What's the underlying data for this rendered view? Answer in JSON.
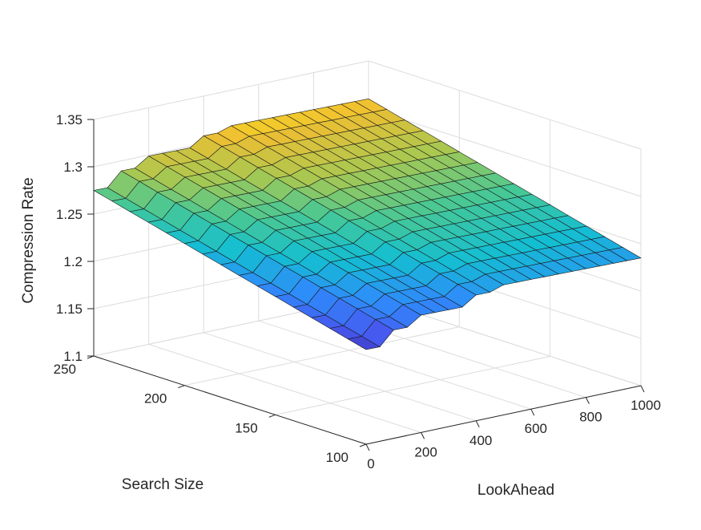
{
  "chart_data": {
    "type": "surface",
    "xlabel": "LookAhead",
    "ylabel": "Search Size",
    "zlabel": "Compression Rate",
    "xlim": [
      0,
      1000
    ],
    "ylim": [
      100,
      250
    ],
    "zlim": [
      1.1,
      1.35
    ],
    "x_ticks": [
      "0",
      "200",
      "400",
      "600",
      "800",
      "1000"
    ],
    "y_ticks": [
      "100",
      "150",
      "200",
      "250"
    ],
    "z_ticks": [
      "1.1",
      "1.15",
      "1.2",
      "1.25",
      "1.3",
      "1.35"
    ],
    "grid": true,
    "colormap": "parula",
    "description_of_trend": [],
    "lookahead": [
      0,
      50,
      100,
      150,
      200,
      250,
      300,
      350,
      400,
      450,
      500,
      550,
      600,
      650,
      700,
      750,
      800,
      850,
      900,
      950,
      1000
    ],
    "search_size": [
      100,
      110,
      120,
      130,
      140,
      150,
      160,
      170,
      180,
      190,
      200,
      210,
      220,
      230,
      240,
      250
    ],
    "z_rows_by_lookahead_col0": [
      1.2,
      1.205,
      1.21,
      1.215,
      1.22,
      1.225,
      1.23,
      1.235,
      1.24,
      1.245,
      1.25,
      1.255,
      1.26,
      1.265,
      1.27,
      1.275
    ]
  }
}
